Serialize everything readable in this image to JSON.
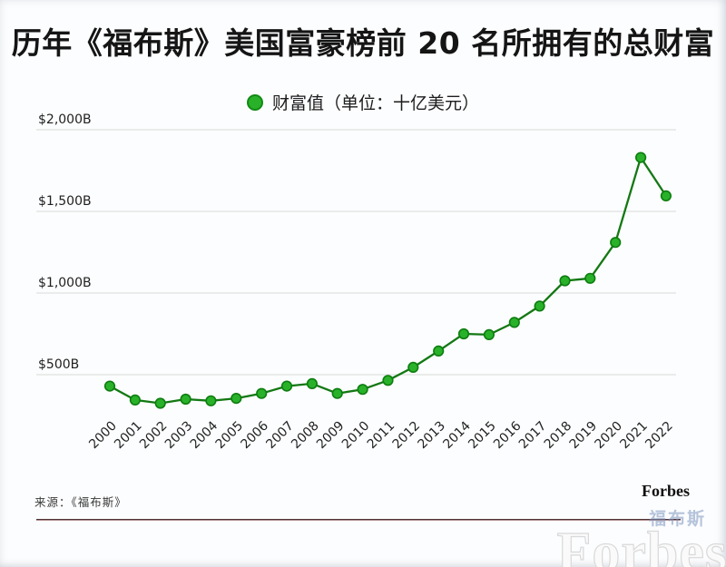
{
  "header": {
    "title": "历年《福布斯》美国富豪榜前 20 名所拥有的总财富"
  },
  "legend": {
    "label": "财富值（单位：十亿美元）",
    "dot_color": "#29b229"
  },
  "chart_data": {
    "type": "line",
    "title": "历年《福布斯》美国富豪榜前 20 名所拥有的总财富",
    "series_name": "财富值",
    "unit_label": "十亿美元",
    "x": [
      "2000",
      "2001",
      "2002",
      "2003",
      "2004",
      "2005",
      "2006",
      "2007",
      "2008",
      "2009",
      "2010",
      "2011",
      "2012",
      "2013",
      "2014",
      "2015",
      "2016",
      "2017",
      "2018",
      "2019",
      "2020",
      "2021",
      "2022"
    ],
    "values": [
      430,
      345,
      325,
      350,
      340,
      355,
      385,
      430,
      445,
      385,
      410,
      465,
      545,
      645,
      750,
      745,
      820,
      920,
      1075,
      1090,
      1310,
      1830,
      1595
    ],
    "yticks": [
      {
        "value": 500,
        "label": "$500B"
      },
      {
        "value": 1000,
        "label": "$1,000B"
      },
      {
        "value": 1500,
        "label": "$1,500B"
      },
      {
        "value": 2000,
        "label": "$2,000B"
      }
    ],
    "ylim": [
      0,
      2000
    ],
    "grid": "horizontal-only",
    "legend_position": "top-center",
    "line_color": "#137813",
    "marker_color": "#29b229",
    "marker_edge_color": "#0d7d10",
    "grid_color": "#d9dadb",
    "tick_label_color": "#1f1f1f"
  },
  "footer": {
    "source": "来源：《福布斯》",
    "brand": "Forbes"
  },
  "watermark": {
    "brand_cn": "福布斯",
    "brand_en": "Forbes"
  }
}
